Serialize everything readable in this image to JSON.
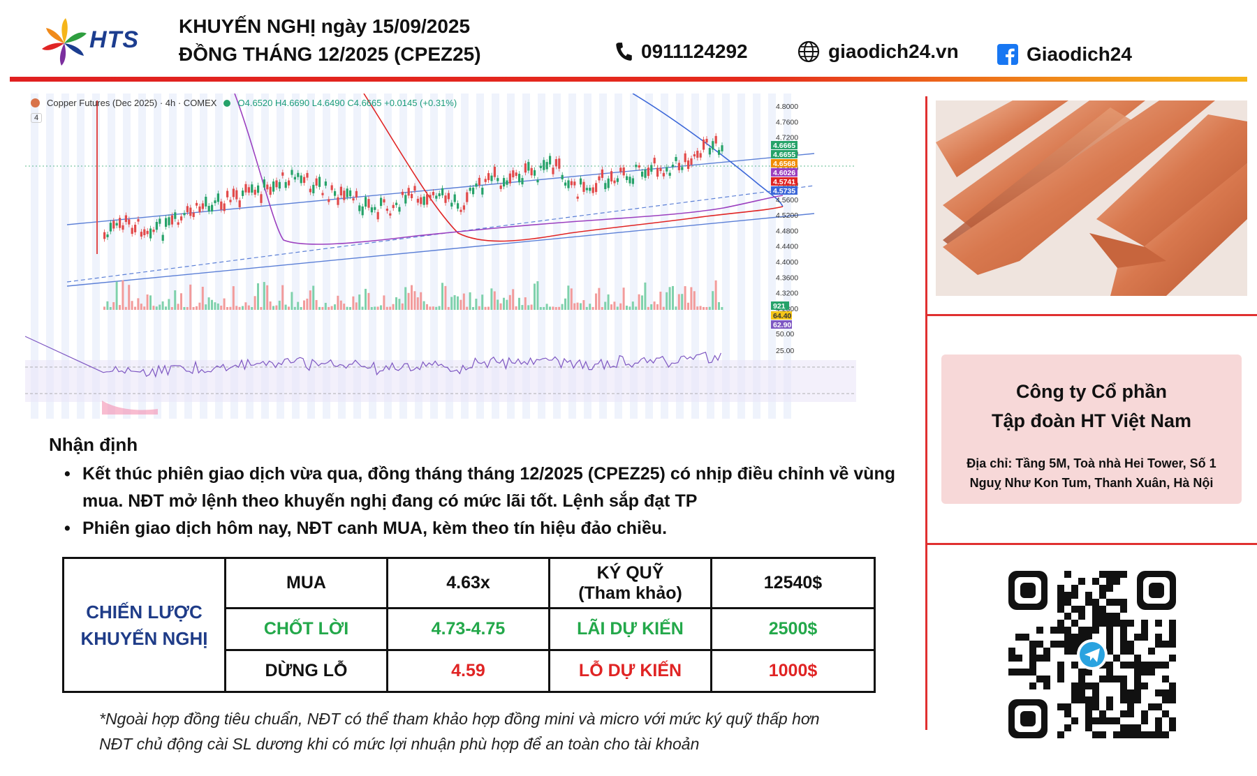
{
  "header": {
    "logo_text": "HTS",
    "title_line1": "KHUYẾN NGHỊ ngày 15/09/2025",
    "title_line2": "ĐỒNG THÁNG 12/2025 (CPEZ25)",
    "phone": "0911124292",
    "website": "giaodich24.vn",
    "facebook": "Giaodich24",
    "icons": [
      "phone-icon",
      "globe-icon",
      "facebook-icon"
    ]
  },
  "chart": {
    "symbol_label": "Copper Futures (Dec 2025) · 4h · COMEX",
    "ohlc": "O4.6520 H4.6690 L4.6490 C4.6665 +0.0145 (+0.31%)",
    "badge": "4",
    "price_axis": [
      "4.8000",
      "4.7600",
      "4.7200",
      "4.6800",
      "4.6400",
      "4.6000",
      "4.5600",
      "4.5200",
      "4.4800",
      "4.4400",
      "4.4000",
      "4.3600",
      "4.3200",
      "4.2800"
    ],
    "price_tags": [
      {
        "text": "4.6665",
        "color": "#26a269"
      },
      {
        "text": "4.6655",
        "color": "#26a269"
      },
      {
        "text": "4.6568",
        "color": "#f08c00"
      },
      {
        "text": "4.6026",
        "color": "#9b3fbf"
      },
      {
        "text": "4.5741",
        "color": "#e02424"
      },
      {
        "text": "4.5735",
        "color": "#3a66d8"
      }
    ],
    "volume_tag": "921",
    "rsi_tags": [
      {
        "text": "64.40",
        "color": "#f5c518"
      },
      {
        "text": "62.90",
        "color": "#7e57c2"
      }
    ],
    "rsi_axis": [
      "50.00",
      "25.00"
    ]
  },
  "assessment": {
    "title": "Nhận định",
    "bullets": [
      "Kết thúc phiên giao dịch vừa qua, đồng tháng tháng 12/2025 (CPEZ25) có nhịp điều chỉnh về vùng mua. NĐT mở lệnh theo khuyến nghị đang có mức lãi tốt. Lệnh sắp đạt TP",
      "Phiên giao dịch hôm nay, NĐT canh MUA, kèm theo tín hiệu đảo chiều."
    ]
  },
  "strategy": {
    "label_line1": "CHIẾN LƯỢC",
    "label_line2": "KHUYẾN NGHỊ",
    "rows": [
      {
        "action": "MUA",
        "price": "4.63x",
        "metric_line1": "KÝ QUỸ",
        "metric_line2": "(Tham khảo)",
        "amount": "12540$"
      },
      {
        "action": "CHỐT LỜI",
        "price": "4.73-4.75",
        "metric": "LÃI DỰ KIẾN",
        "amount": "2500$"
      },
      {
        "action": "DỪNG LỖ",
        "price": "4.59",
        "metric": "LỖ DỰ KIẾN",
        "amount": "1000$"
      }
    ]
  },
  "footnote": {
    "line1": "*Ngoài hợp đồng tiêu chuẩn, NĐT có thể tham khảo hợp đồng mini và micro với mức ký quỹ thấp hơn",
    "line2": "NĐT chủ động cài SL dương khi có mức lợi nhuận phù hợp để an toàn cho tài khoản"
  },
  "company": {
    "name_line1": "Công ty Cổ phần",
    "name_line2": "Tập đoàn HT Việt Nam",
    "address_line1": "Địa chỉ: Tầng 5M, Toà nhà Hei Tower, Số 1",
    "address_line2": "Nguỵ Như Kon Tum, Thanh Xuân, Hà Nội"
  },
  "images": [
    "copper-bars-photo",
    "telegram-qr-code"
  ]
}
